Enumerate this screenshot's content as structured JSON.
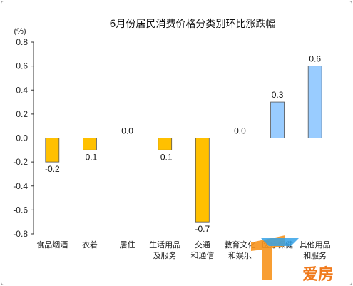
{
  "chart_data": {
    "type": "bar",
    "title": "6月份居民消费价格分类别环比涨跌幅",
    "ylabel": "",
    "unit": "(%)",
    "ylim": [
      -0.8,
      0.8
    ],
    "yticks": [
      0.8,
      0.6,
      0.4,
      0.2,
      0.0,
      -0.2,
      -0.4,
      -0.6,
      -0.8
    ],
    "categories": [
      [
        "食品烟酒"
      ],
      [
        "衣着"
      ],
      [
        "居住"
      ],
      [
        "生活用品",
        "及服务"
      ],
      [
        "交通",
        "和通信"
      ],
      [
        "教育文化",
        "和娱乐"
      ],
      [
        "医疗保健"
      ],
      [
        "其他用品",
        "和服务"
      ]
    ],
    "values": [
      -0.2,
      -0.1,
      0.0,
      -0.1,
      -0.7,
      0.0,
      0.3,
      0.6
    ],
    "data_labels": [
      "-0.2",
      "-0.1",
      "0.0",
      "-0.1",
      "-0.7",
      "0.0",
      "0.3",
      "0.6"
    ],
    "colors": {
      "negative": "#ffc000",
      "positive": "#99ccff",
      "outline": "#555555"
    },
    "grid": false
  },
  "watermark": {
    "text": "爱房",
    "colors": [
      "#f7941d",
      "#35a2e8"
    ]
  }
}
